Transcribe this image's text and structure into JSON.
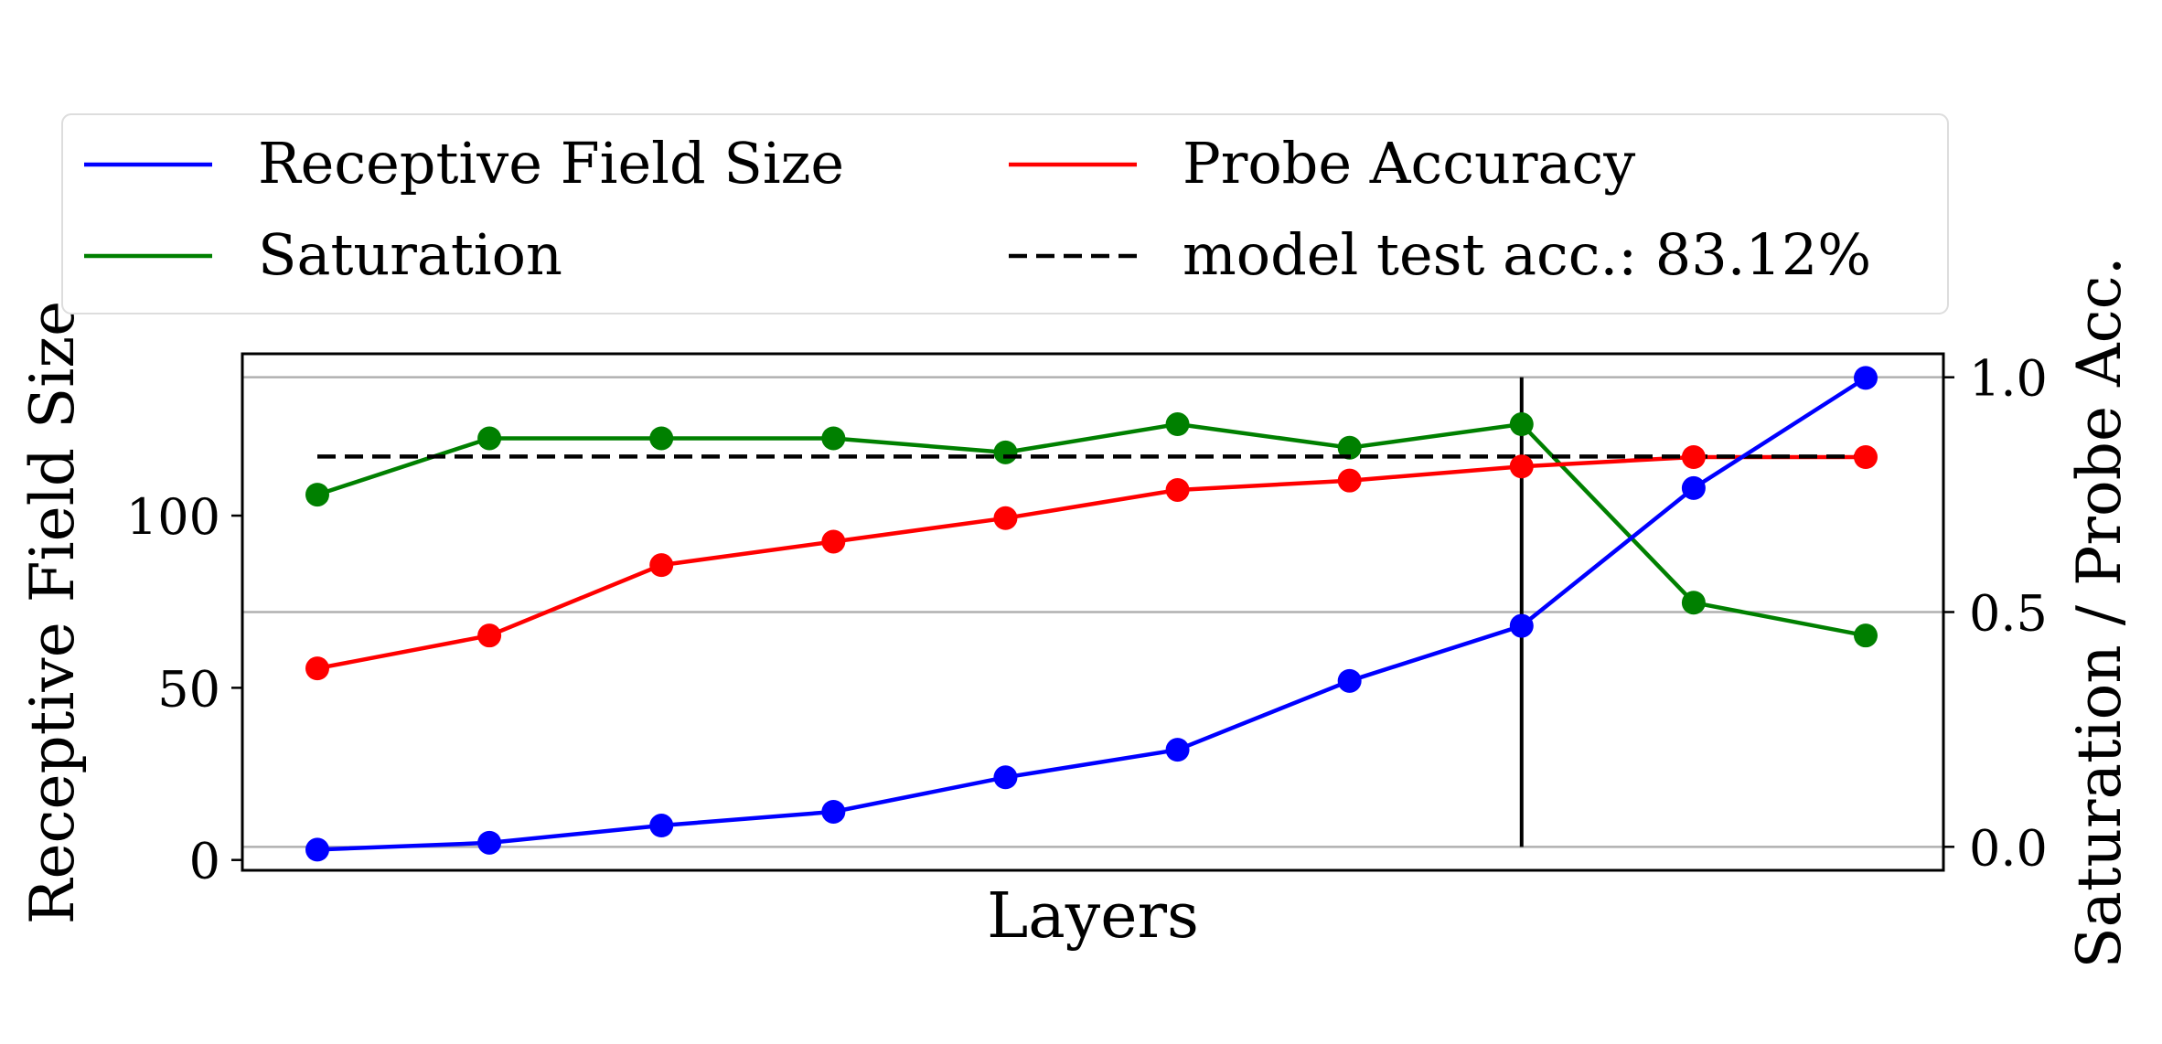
{
  "chart_data": {
    "type": "line",
    "xlabel": "Layers",
    "ylabel_left": "Receptive Field Size",
    "ylabel_right": "Saturation / Probe Acc.",
    "x": [
      1,
      2,
      3,
      4,
      5,
      6,
      7,
      8,
      9,
      10
    ],
    "y_left_lim": [
      -3,
      147
    ],
    "y_right_lim": [
      -0.05,
      1.05
    ],
    "y_left_ticks": [
      0,
      50,
      100
    ],
    "y_right_ticks": [
      "0.0",
      "0.5",
      "1.0"
    ],
    "grid": "horizontal (right axis)",
    "legend_placement": "above plot, two columns",
    "series": [
      {
        "name": "Receptive Field Size",
        "axis": "left",
        "color": "#0000ff",
        "values": [
          3,
          5,
          10,
          14,
          24,
          32,
          52,
          68,
          108,
          140
        ]
      },
      {
        "name": "Probe Accuracy",
        "axis": "right",
        "color": "#ff0000",
        "values": [
          0.38,
          0.45,
          0.6,
          0.65,
          0.7,
          0.76,
          0.78,
          0.81,
          0.83,
          0.83
        ]
      },
      {
        "name": "Saturation",
        "axis": "right",
        "color": "#008000",
        "values": [
          0.75,
          0.87,
          0.87,
          0.87,
          0.84,
          0.9,
          0.85,
          0.9,
          0.52,
          0.45
        ]
      }
    ],
    "reference_line": {
      "name": "model test acc.: 83.12%",
      "axis": "right",
      "value": 0.8312,
      "style": "dashed",
      "color": "#000000"
    },
    "vertical_marker": {
      "x": 8,
      "color": "#000000"
    }
  }
}
